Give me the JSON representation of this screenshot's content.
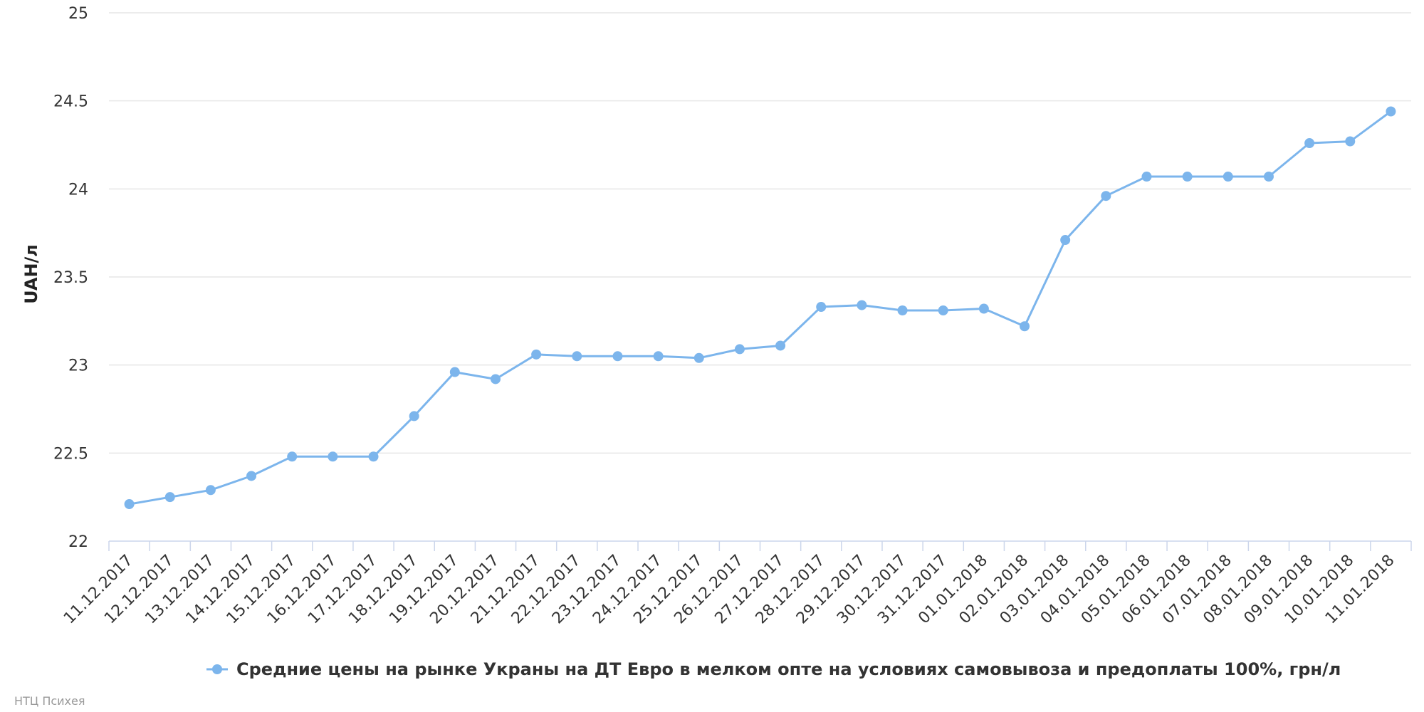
{
  "chart_data": {
    "type": "line",
    "ylabel": "UAH/л",
    "xlabel": "",
    "ylim": [
      22,
      25
    ],
    "yticks": [
      "22",
      "22.5",
      "23",
      "23.5",
      "24",
      "24.5",
      "25"
    ],
    "grid": true,
    "legend_position": "bottom-center",
    "color": "#7cb5ec",
    "categories": [
      "11.12.2017",
      "12.12.2017",
      "13.12.2017",
      "14.12.2017",
      "15.12.2017",
      "16.12.2017",
      "17.12.2017",
      "18.12.2017",
      "19.12.2017",
      "20.12.2017",
      "21.12.2017",
      "22.12.2017",
      "23.12.2017",
      "24.12.2017",
      "25.12.2017",
      "26.12.2017",
      "27.12.2017",
      "28.12.2017",
      "29.12.2017",
      "30.12.2017",
      "31.12.2017",
      "01.01.2018",
      "02.01.2018",
      "03.01.2018",
      "04.01.2018",
      "05.01.2018",
      "06.01.2018",
      "07.01.2018",
      "08.01.2018",
      "09.01.2018",
      "10.01.2018",
      "11.01.2018"
    ],
    "series": [
      {
        "name": "Средние цены на рынке Украны на ДТ Евро в мелком опте на условиях самовывоза и предоплаты 100%, грн/л",
        "values": [
          22.21,
          22.25,
          22.29,
          22.37,
          22.48,
          22.48,
          22.48,
          22.71,
          22.96,
          22.92,
          23.06,
          23.05,
          23.05,
          23.05,
          23.04,
          23.09,
          23.11,
          23.33,
          23.34,
          23.31,
          23.31,
          23.32,
          23.22,
          23.71,
          23.96,
          24.07,
          24.07,
          24.07,
          24.07,
          24.26,
          24.27,
          24.44
        ]
      }
    ]
  },
  "credit": "НТЦ Психея"
}
